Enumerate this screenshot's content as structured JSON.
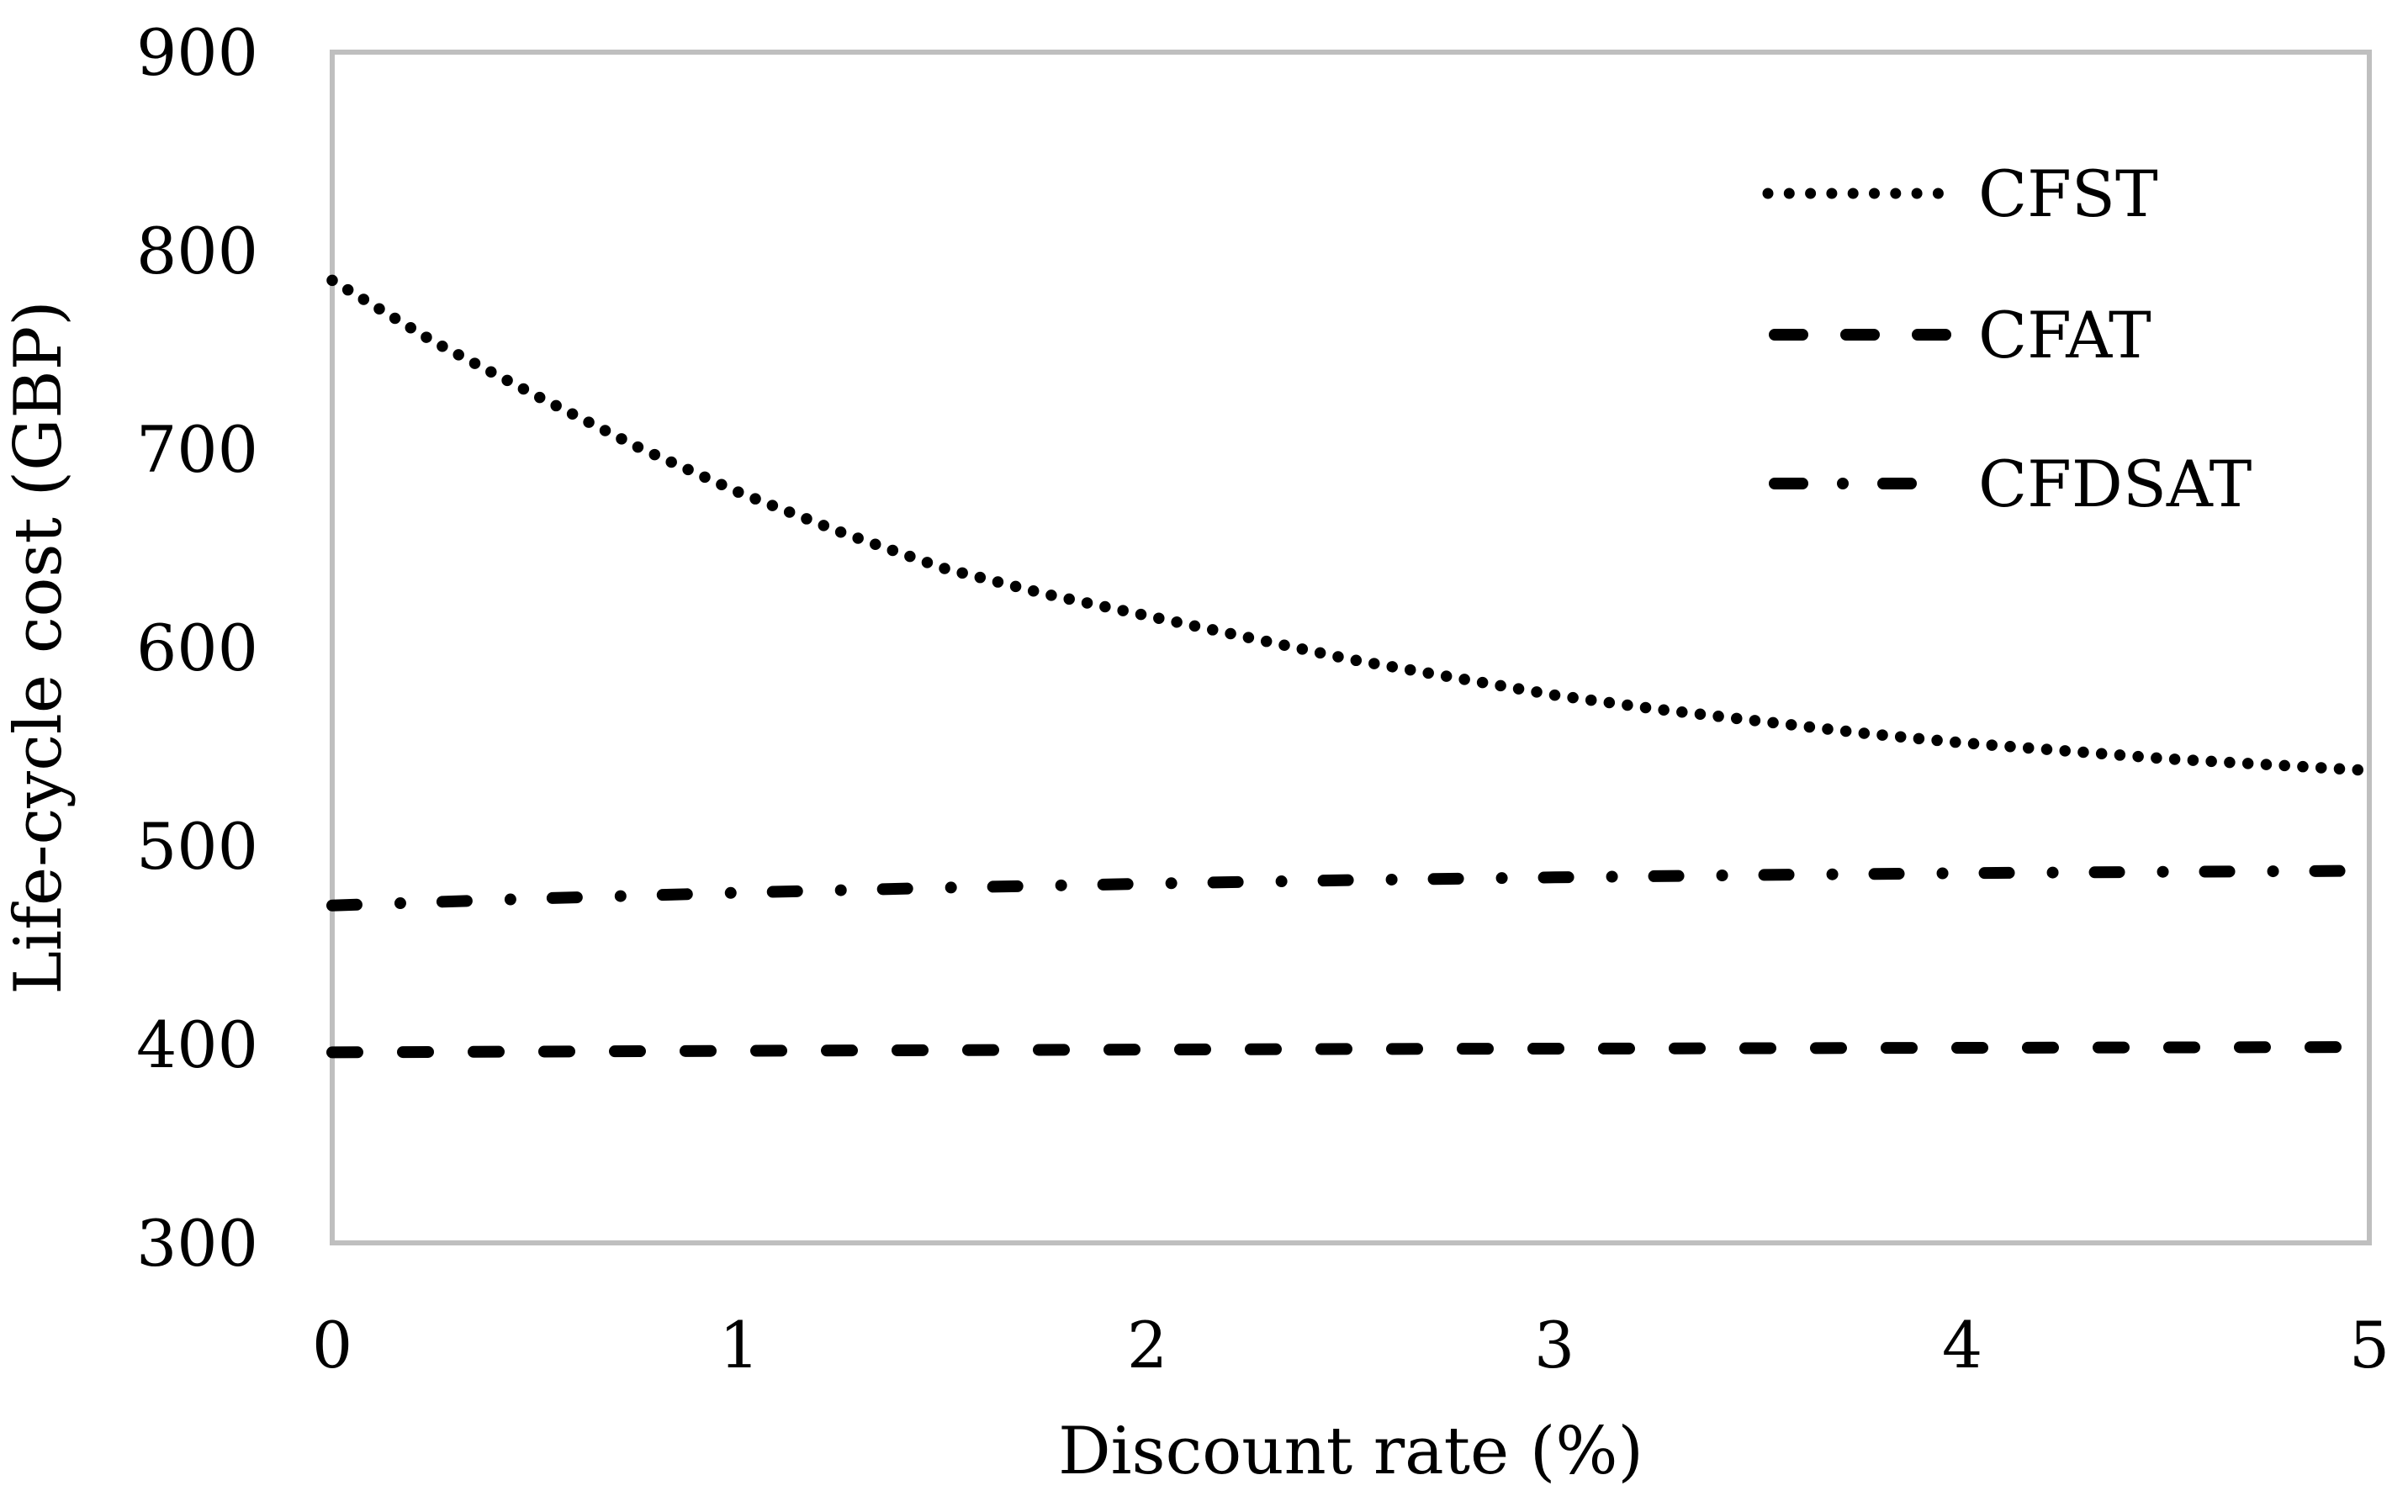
{
  "chart_data": {
    "type": "line",
    "title": "",
    "xlabel": "Discount rate (%)",
    "ylabel": "Life-cycle cost (GBP)",
    "xlim": [
      0,
      5
    ],
    "ylim": [
      300,
      900
    ],
    "x_ticks": [
      0,
      1,
      2,
      3,
      4,
      5
    ],
    "y_ticks_top_down": [
      900,
      800,
      700,
      600,
      500,
      400,
      300
    ],
    "grid": false,
    "legend_position": "inside-top-right",
    "plot_border_color": "#bfbfbf",
    "series_color": "#000000",
    "background_color": "#ffffff",
    "series": [
      {
        "name": "CFST",
        "line_style": "dotted",
        "x": [
          0,
          0.25,
          0.5,
          0.75,
          1,
          1.25,
          1.5,
          1.75,
          2,
          2.25,
          2.5,
          2.75,
          3,
          3.25,
          3.5,
          3.75,
          4,
          4.25,
          4.5,
          4.75,
          5
        ],
        "values": [
          785,
          754,
          727,
          701,
          678,
          658,
          640,
          627,
          616,
          605,
          594,
          585,
          576,
          569,
          563,
          557,
          552,
          548,
          544,
          541,
          538
        ]
      },
      {
        "name": "CFAT",
        "line_style": "dashed",
        "x": [
          0,
          0.5,
          1,
          1.5,
          2,
          2.5,
          3,
          3.5,
          4,
          4.5,
          5
        ],
        "values": [
          396,
          396.4,
          396.8,
          397.1,
          397.4,
          397.7,
          397.9,
          398.1,
          398.3,
          398.5,
          398.7
        ]
      },
      {
        "name": "CFDSAT",
        "line_style": "dash-dot",
        "x": [
          0,
          0.5,
          1,
          1.5,
          2,
          2.5,
          3,
          3.5,
          4,
          4.5,
          5
        ],
        "values": [
          470,
          473.5,
          476.5,
          479,
          481,
          482.8,
          484.2,
          485.4,
          486.3,
          487,
          487.5
        ]
      }
    ]
  }
}
